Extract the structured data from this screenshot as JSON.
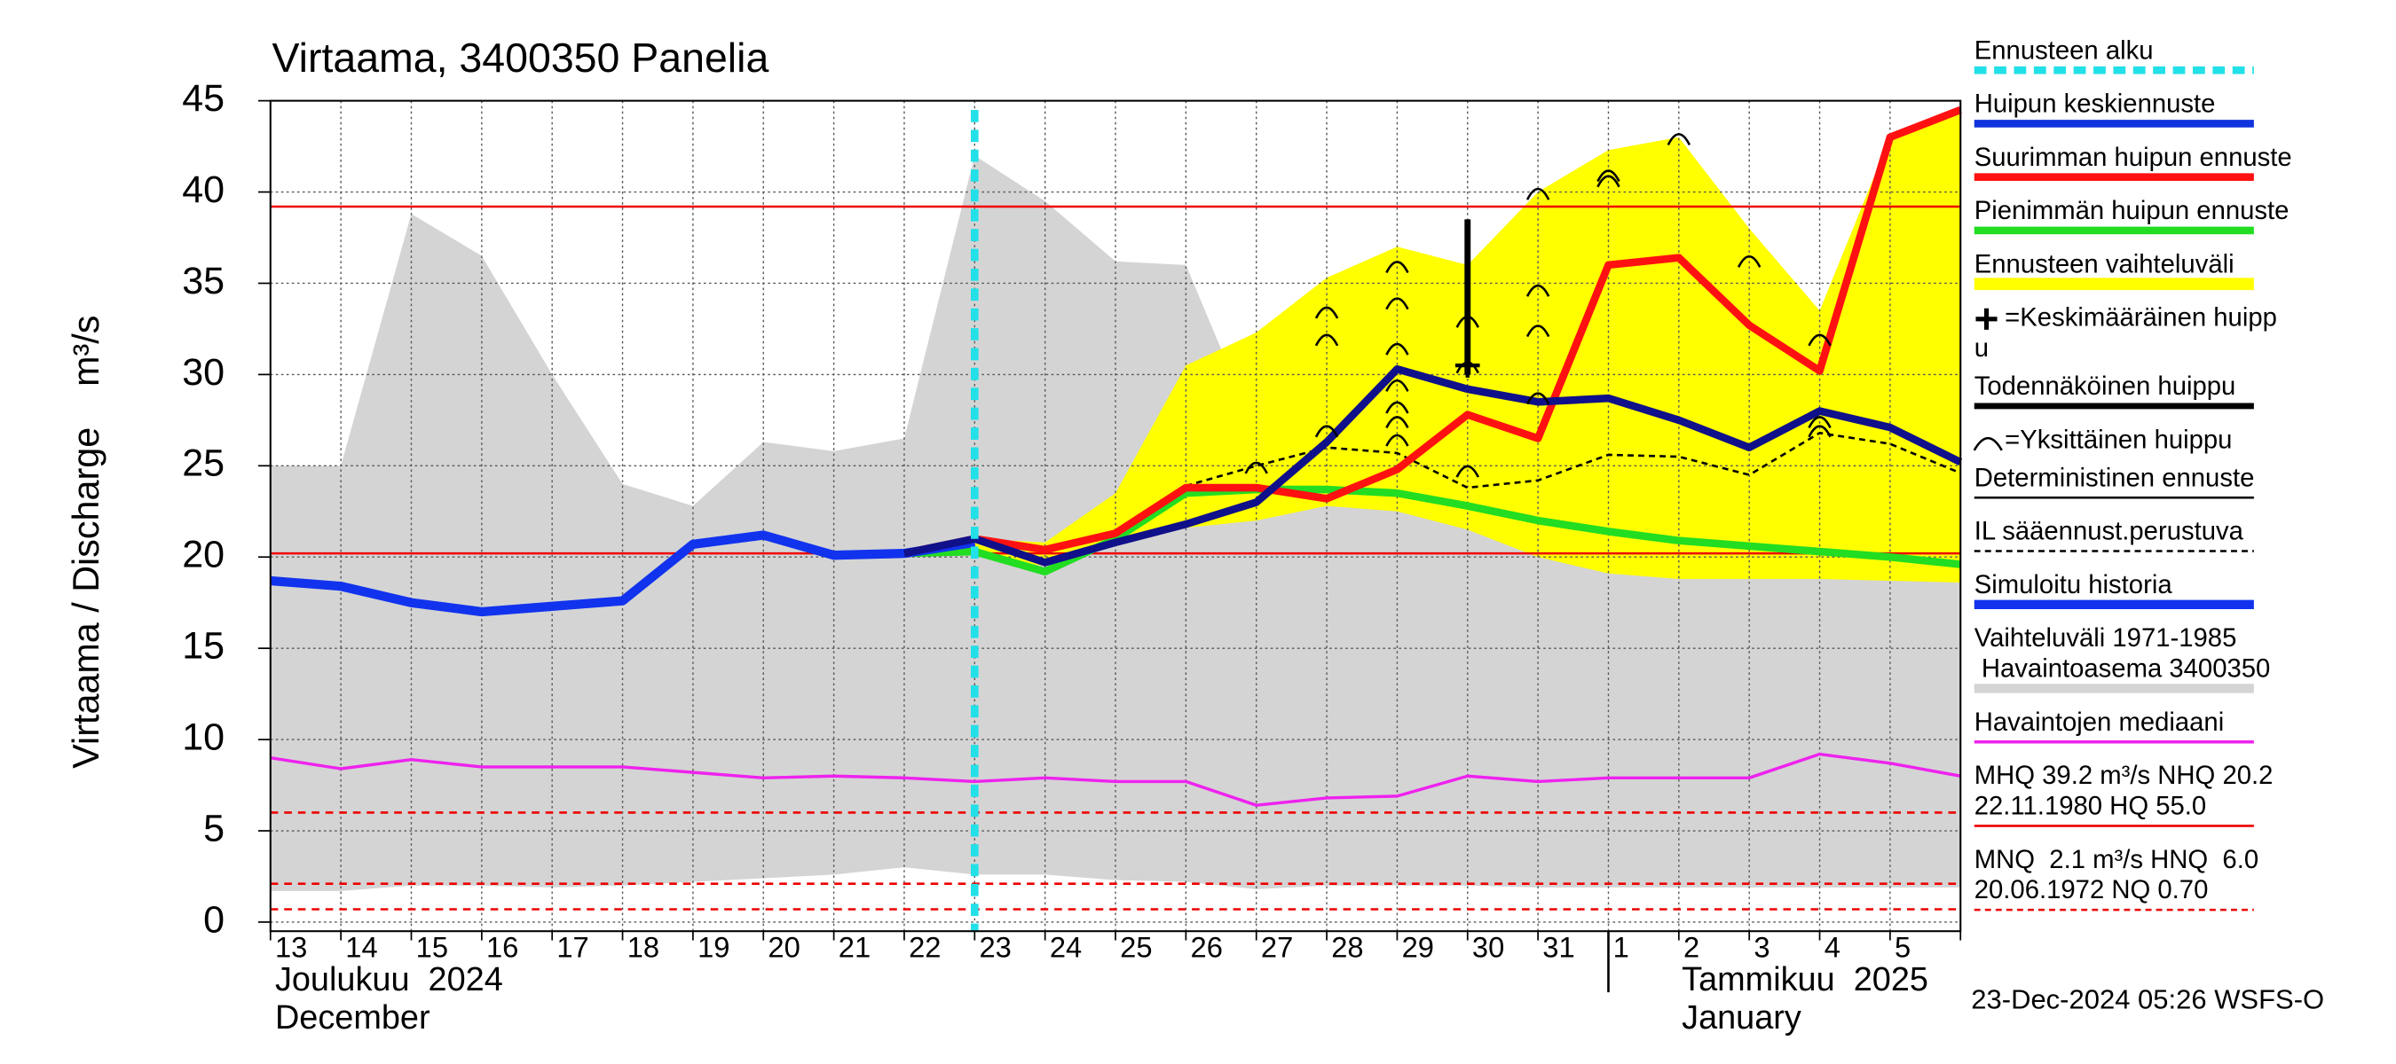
{
  "chart_data": {
    "type": "line",
    "title": "Virtaama, 3400350 Panelia",
    "y_label": "Virtaama / Discharge    m³/s",
    "footer": "23-Dec-2024 05:26 WSFS-O",
    "categories": [
      "13",
      "14",
      "15",
      "16",
      "17",
      "18",
      "19",
      "20",
      "21",
      "22",
      "23",
      "24",
      "25",
      "26",
      "27",
      "28",
      "29",
      "30",
      "31",
      "1",
      "2",
      "3",
      "4",
      "5",
      null
    ],
    "months": [
      [
        "Joulukuu  2024",
        "December"
      ],
      [
        "Tammikuu  2025",
        "January"
      ]
    ],
    "ylim": [
      -0.5,
      45
    ],
    "yticks": [
      0,
      5,
      10,
      15,
      20,
      25,
      30,
      35,
      40,
      45
    ],
    "grid": true,
    "forecast_start": 10,
    "forecast_start_color": "#22e0e8",
    "series": [
      {
        "kind": "band",
        "color": "#d4d4d4",
        "upper": [
          25,
          25,
          38.8,
          36.5,
          30,
          24,
          22.8,
          26.3,
          25.8,
          26.5,
          42,
          39.5,
          36.2,
          36,
          26.8,
          25.5,
          24.5,
          23.3,
          22,
          21,
          20.8,
          22,
          22,
          22.3,
          21.5
        ],
        "lower": [
          1.7,
          1.7,
          2,
          2,
          1.9,
          2,
          2.2,
          2.4,
          2.6,
          3,
          2.6,
          2.6,
          2.3,
          2.2,
          1.8,
          2,
          2,
          2,
          1.9,
          1.9,
          1.9,
          1.9,
          1.9,
          1.9,
          1.9
        ]
      },
      {
        "kind": "band",
        "color": "#ffff00",
        "upper": [
          null,
          null,
          null,
          null,
          null,
          null,
          null,
          null,
          null,
          null,
          21,
          20.8,
          23.5,
          30.5,
          32.3,
          35.3,
          37,
          36,
          40,
          42.3,
          43,
          38,
          33.5,
          43,
          44.5
        ],
        "lower": [
          null,
          null,
          null,
          null,
          null,
          null,
          null,
          null,
          null,
          null,
          20.1,
          19.5,
          20.7,
          21.6,
          22,
          22.8,
          22.5,
          21.5,
          20,
          19.1,
          18.8,
          18.8,
          18.8,
          18.7,
          18.6
        ]
      },
      {
        "kind": "line",
        "color": "#ee22ee",
        "width": 2,
        "values": [
          9,
          8.4,
          8.9,
          8.5,
          8.5,
          8.5,
          8.2,
          7.9,
          8,
          7.9,
          7.7,
          7.9,
          7.7,
          7.7,
          6.4,
          6.8,
          6.9,
          8,
          7.7,
          7.9,
          7.9,
          7.9,
          9.2,
          8.7,
          8
        ]
      },
      {
        "kind": "line",
        "color": "#000000",
        "width": 1.5,
        "dash": true,
        "values": [
          null,
          null,
          null,
          null,
          null,
          null,
          null,
          null,
          null,
          null,
          null,
          null,
          null,
          23.9,
          25,
          26,
          25.7,
          23.8,
          24.2,
          25.6,
          25.5,
          24.5,
          26.8,
          26.2,
          24.6
        ]
      },
      {
        "kind": "line",
        "color": "#22dd22",
        "width": 5,
        "values": [
          null,
          null,
          null,
          null,
          null,
          null,
          null,
          null,
          null,
          20.2,
          20.3,
          19.2,
          21,
          23.5,
          23.7,
          23.7,
          23.5,
          22.8,
          22,
          21.4,
          20.9,
          20.6,
          20.3,
          20,
          19.6
        ]
      },
      {
        "kind": "line",
        "color": "#ff1111",
        "width": 5,
        "values": [
          null,
          null,
          null,
          null,
          null,
          null,
          null,
          null,
          null,
          20.2,
          21,
          20.4,
          21.3,
          23.8,
          23.8,
          23.2,
          24.8,
          27.8,
          26.5,
          36,
          36.4,
          32.7,
          30.2,
          43,
          44.5
        ]
      },
      {
        "kind": "line",
        "color": "#1133ee",
        "width": 6,
        "values": [
          18.7,
          18.4,
          17.5,
          17,
          17.3,
          17.6,
          20.7,
          21.2,
          20.1,
          20.2,
          20.8,
          null,
          null,
          null,
          null,
          null,
          null,
          null,
          null,
          null,
          null,
          null,
          null,
          null,
          null
        ]
      },
      {
        "kind": "line",
        "color": "#10108a",
        "width": 5,
        "values": [
          null,
          null,
          null,
          null,
          null,
          null,
          null,
          null,
          null,
          20.2,
          21,
          19.7,
          20.8,
          21.8,
          23,
          26.3,
          30.3,
          29.2,
          28.5,
          28.7,
          27.5,
          26,
          28,
          27.1,
          25.2
        ]
      },
      {
        "kind": "peaks",
        "color": "#000000",
        "x": [
          14,
          15,
          15,
          15,
          16,
          16,
          16,
          16,
          16,
          16,
          16,
          17,
          17,
          17,
          18,
          18,
          18,
          18,
          19,
          19,
          20,
          21,
          22,
          22,
          22
        ],
        "values": [
          25,
          27,
          32,
          33.5,
          36,
          34,
          31.5,
          29.5,
          28.3,
          27.5,
          26.5,
          33,
          30.5,
          24.8,
          40,
          34.7,
          32.5,
          28.8,
          41,
          40.7,
          43,
          36.3,
          32,
          27.5,
          27
        ]
      },
      {
        "kind": "range",
        "color": "#000000",
        "x": 17,
        "low": 30,
        "high": 38.5
      },
      {
        "kind": "cross",
        "color": "#000000",
        "x": 17,
        "value": 30.5
      }
    ],
    "reference_lines": [
      {
        "value": 39.2,
        "color": "#ee0000",
        "dash": false
      },
      {
        "value": 20.2,
        "color": "#ee0000",
        "dash": false
      },
      {
        "value": 6.0,
        "color": "#ee0000",
        "dash": true
      },
      {
        "value": 2.1,
        "color": "#ee0000",
        "dash": true
      },
      {
        "value": 0.7,
        "color": "#ee0000",
        "dash": true
      }
    ],
    "legend": [
      {
        "lines": [
          "Ennusteen alku"
        ],
        "swatch": {
          "color": "#22e0e8",
          "width": 5,
          "dash": true
        }
      },
      {
        "lines": [
          "Huipun keskiennuste"
        ],
        "swatch": {
          "color": "#1133dd",
          "width": 5
        }
      },
      {
        "lines": [
          "Suurimman huipun ennuste"
        ],
        "swatch": {
          "color": "#ff1111",
          "width": 5
        }
      },
      {
        "lines": [
          "Pienimmän huipun ennuste"
        ],
        "swatch": {
          "color": "#22dd22",
          "width": 5
        }
      },
      {
        "lines": [
          "Ennusteen vaihteluväli"
        ],
        "swatch": {
          "color": "#ffff00",
          "width": 8
        }
      },
      {
        "lines": [
          "=Keskimääräinen huipp",
          "u"
        ],
        "icon": "cross"
      },
      {
        "lines": [
          "Todennäköinen huippu"
        ],
        "swatch": {
          "color": "#000000",
          "width": 4
        }
      },
      {
        "lines": [
          "=Yksittäinen huippu"
        ],
        "icon": "arc"
      },
      {
        "lines": [
          "Deterministinen ennuste"
        ],
        "swatch": {
          "color": "#000000",
          "width": 1.5
        }
      },
      {
        "lines": [
          "IL sääennust.perustuva"
        ],
        "swatch": {
          "color": "#000000",
          "width": 1.5,
          "dash": true
        }
      },
      {
        "lines": [
          "Simuloitu historia"
        ],
        "swatch": {
          "color": "#1133ee",
          "width": 6
        }
      },
      {
        "lines": [
          "Vaihteluväli 1971-1985",
          " Havaintoasema 3400350"
        ],
        "swatch": {
          "color": "#d4d4d4",
          "width": 6
        }
      },
      {
        "lines": [
          "Havaintojen mediaani"
        ],
        "swatch": {
          "color": "#ee22ee",
          "width": 2
        }
      },
      {
        "lines": [
          "MHQ 39.2 m³/s NHQ 20.2",
          "22.11.1980 HQ 55.0"
        ],
        "swatch": {
          "color": "#ee0000",
          "width": 1.5
        }
      },
      {
        "lines": [
          "MNQ  2.1 m³/s HNQ  6.0",
          "20.06.1972 NQ 0.70"
        ],
        "swatch": {
          "color": "#ee0000",
          "width": 1.5,
          "dash": true
        }
      }
    ]
  }
}
